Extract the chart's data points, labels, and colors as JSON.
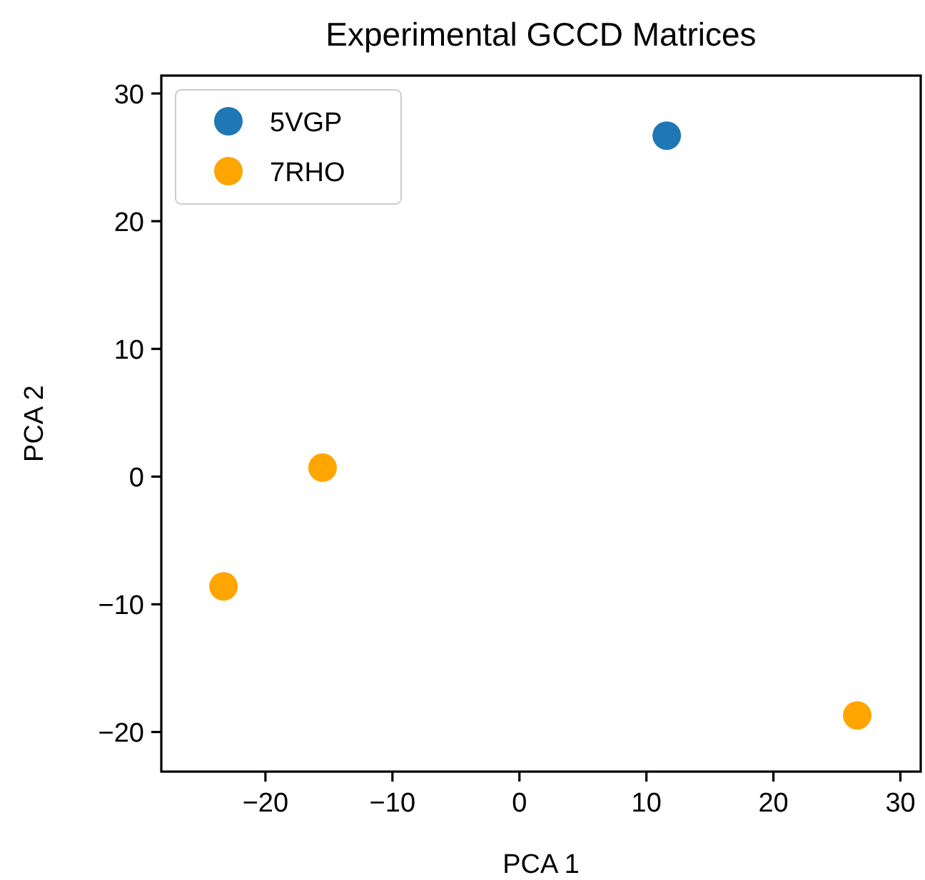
{
  "chart_data": {
    "type": "scatter",
    "title": "Experimental GCCD Matrices",
    "xlabel": "PCA 1",
    "ylabel": "PCA 2",
    "xlim": [
      -28.2,
      31.6
    ],
    "ylim": [
      -23.1,
      31.4
    ],
    "xticks": [
      {
        "value": -20,
        "label": "−20"
      },
      {
        "value": -10,
        "label": "−10"
      },
      0,
      10,
      20,
      30
    ],
    "yticks": [
      {
        "value": -20,
        "label": "−20"
      },
      {
        "value": -10,
        "label": "−10"
      },
      0,
      10,
      20,
      30
    ],
    "series": [
      {
        "name": "5VGP",
        "color": "#1f77b4",
        "x": [
          11.6
        ],
        "values": [
          26.7
        ]
      },
      {
        "name": "7RHO",
        "color": "#ffa500",
        "x": [
          -15.5,
          -23.3,
          26.6
        ],
        "values": [
          0.7,
          -8.6,
          -18.7
        ]
      }
    ],
    "marker": "circle",
    "grid": false,
    "legend": "top left"
  }
}
